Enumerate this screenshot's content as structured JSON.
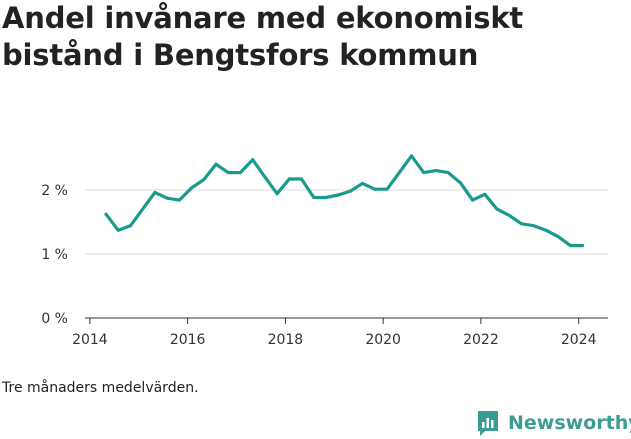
{
  "title": "Andel invånare med ekonomiskt bistånd i Bengtsfors kommun",
  "note": "Tre månaders medelvärden.",
  "brand": {
    "name": "Newsworthy",
    "icon": "newsworthy-logo-icon"
  },
  "colors": {
    "line": "#1a9a8c",
    "grid": "#dddddd",
    "axis": "#333333",
    "brand": "#3d9c92"
  },
  "chart_data": {
    "type": "line",
    "title": "Andel invånare med ekonomiskt bistånd i Bengtsfors kommun",
    "xlabel": "",
    "ylabel": "",
    "x_ticks": [
      "2014",
      "2016",
      "2018",
      "2020",
      "2022",
      "2024"
    ],
    "y_ticks": [
      {
        "value": 0,
        "label": "0 %"
      },
      {
        "value": 1,
        "label": "1 %"
      },
      {
        "value": 2,
        "label": "2 %"
      }
    ],
    "xlim": [
      2013.9,
      2024.6
    ],
    "ylim": [
      0,
      2.7
    ],
    "grid": true,
    "series": [
      {
        "x": [
          2014.33,
          2014.58,
          2014.83,
          2015.08,
          2015.33,
          2015.58,
          2015.83,
          2016.08,
          2016.33,
          2016.58,
          2016.83,
          2017.08,
          2017.33,
          2017.58,
          2017.83,
          2018.08,
          2018.33,
          2018.58,
          2018.83,
          2019.08,
          2019.33,
          2019.58,
          2019.83,
          2020.08,
          2020.33,
          2020.58,
          2020.83,
          2021.08,
          2021.33,
          2021.58,
          2021.83,
          2022.08,
          2022.33,
          2022.58,
          2022.83,
          2023.08,
          2023.33,
          2023.58,
          2023.83,
          2024.08
        ],
        "values": [
          1.62,
          1.37,
          1.44,
          1.7,
          1.96,
          1.87,
          1.84,
          2.03,
          2.16,
          2.4,
          2.27,
          2.27,
          2.47,
          2.2,
          1.94,
          2.17,
          2.17,
          1.88,
          1.88,
          1.92,
          1.98,
          2.1,
          2.01,
          2.01,
          2.27,
          2.53,
          2.27,
          2.3,
          2.27,
          2.11,
          1.84,
          1.93,
          1.7,
          1.6,
          1.47,
          1.44,
          1.37,
          1.27,
          1.13,
          1.13
        ]
      }
    ]
  }
}
